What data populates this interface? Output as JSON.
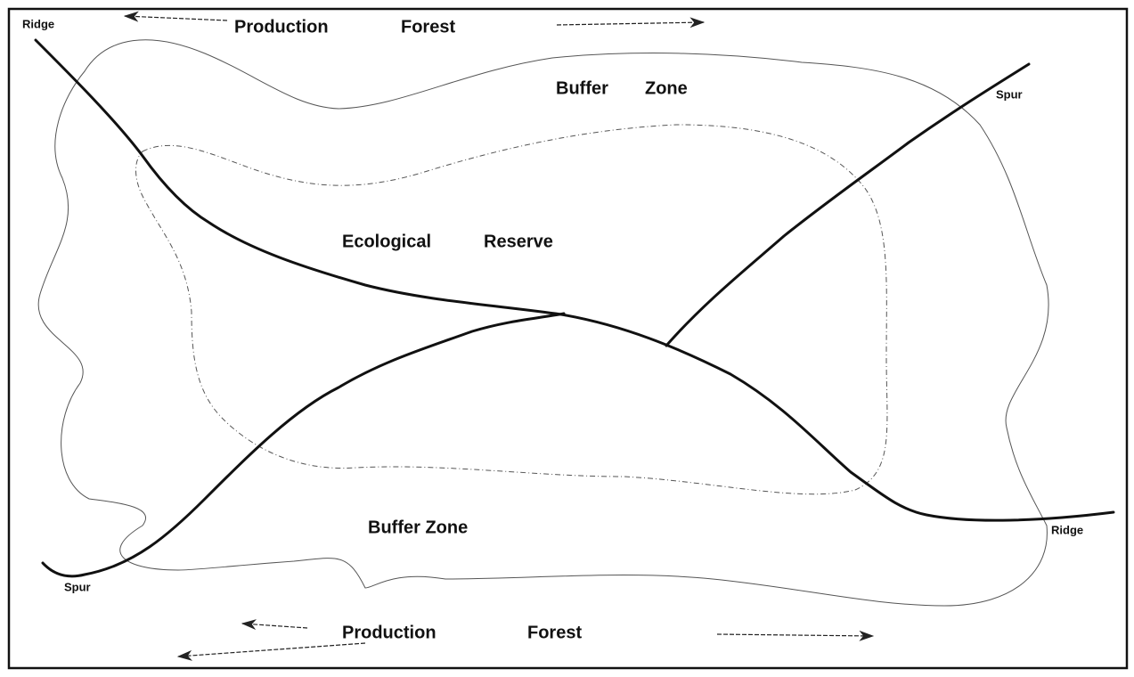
{
  "labels": [
    "Ridge",
    "Production",
    "Forest",
    "Buffer",
    "Zone",
    "Spur",
    "Ecological",
    "Reserve",
    "Buffer Zone",
    "Spur",
    "Ridge",
    "Production",
    "Forest"
  ]
}
